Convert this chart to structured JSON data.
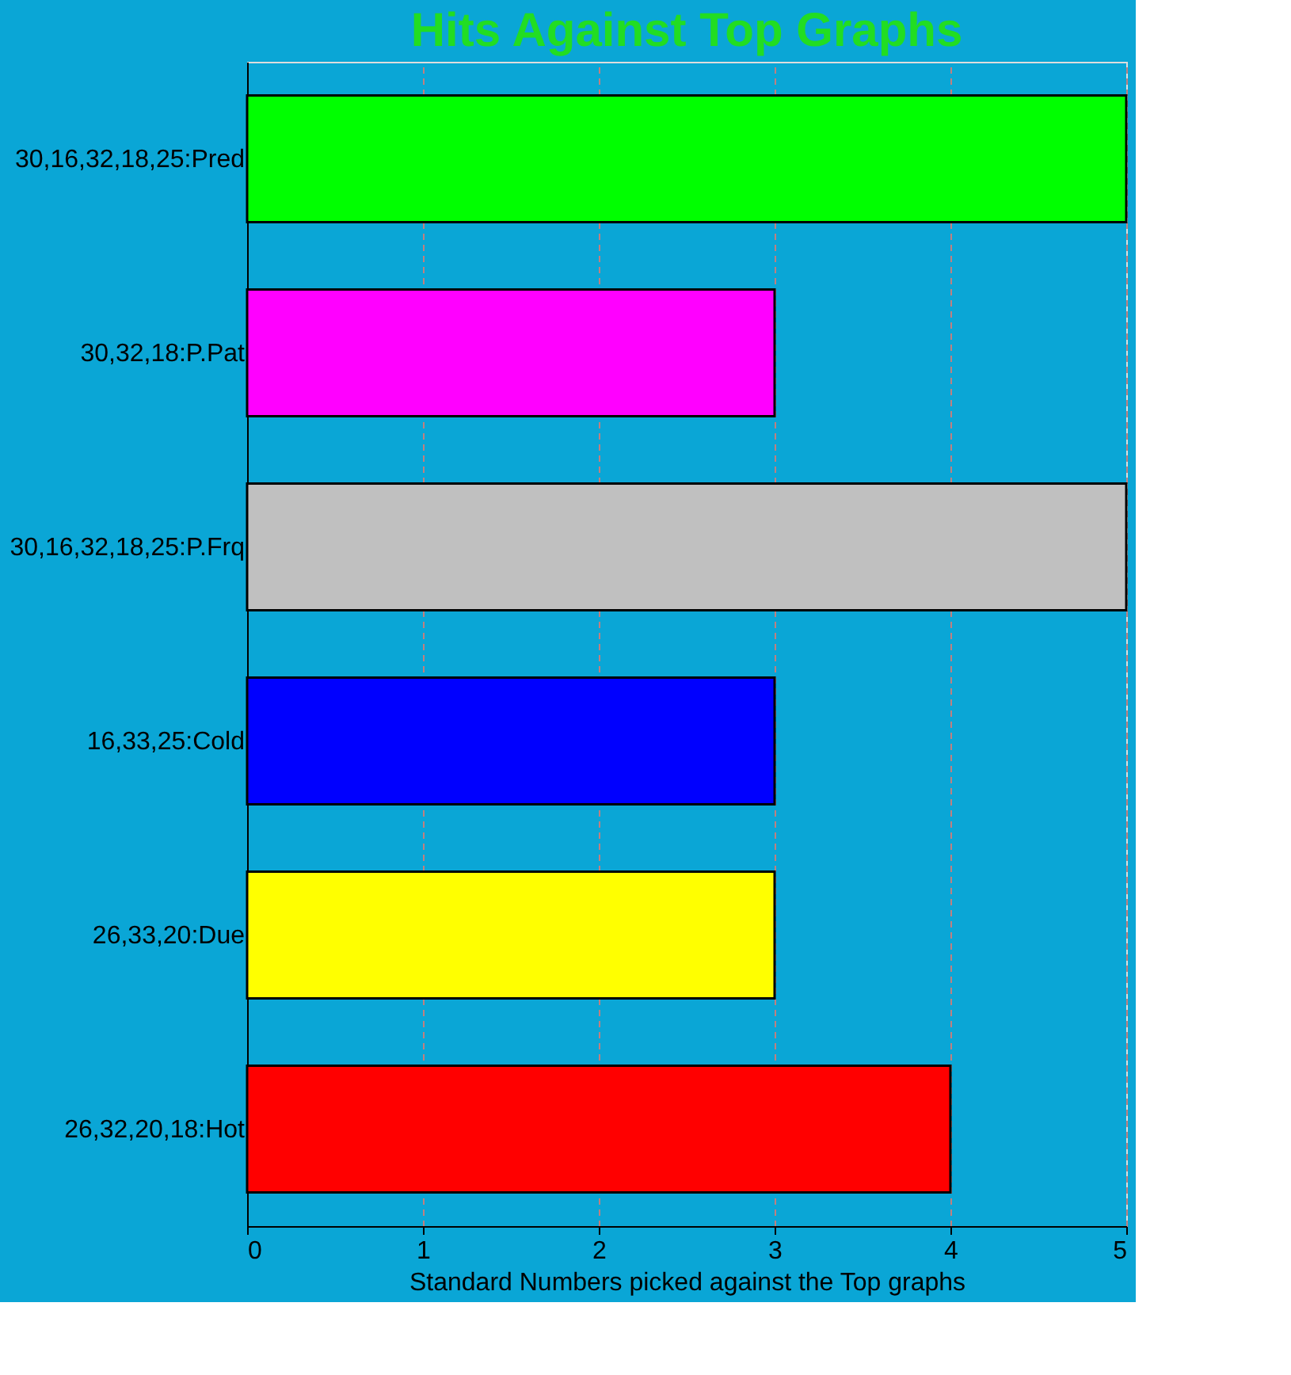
{
  "chart_data": {
    "type": "bar",
    "orientation": "horizontal",
    "title": "Hits Against Top Graphs",
    "xlabel": "Standard Numbers picked against the Top graphs",
    "categories": [
      "30,16,32,18,25:Pred",
      "30,32,18:P.Pat",
      "30,16,32,18,25:P.Frq",
      "16,33,25:Cold",
      "26,33,20:Due",
      "26,32,20,18:Hot"
    ],
    "values": [
      5,
      3,
      5,
      3,
      3,
      4
    ],
    "colors": [
      "#00ff00",
      "#ff00ff",
      "#c0c0c0",
      "#0000ff",
      "#ffff00",
      "#ff0000"
    ],
    "xlim": [
      0,
      5
    ],
    "xticks": [
      0,
      1,
      2,
      3,
      4,
      5
    ],
    "grid": "x",
    "legend": false
  }
}
